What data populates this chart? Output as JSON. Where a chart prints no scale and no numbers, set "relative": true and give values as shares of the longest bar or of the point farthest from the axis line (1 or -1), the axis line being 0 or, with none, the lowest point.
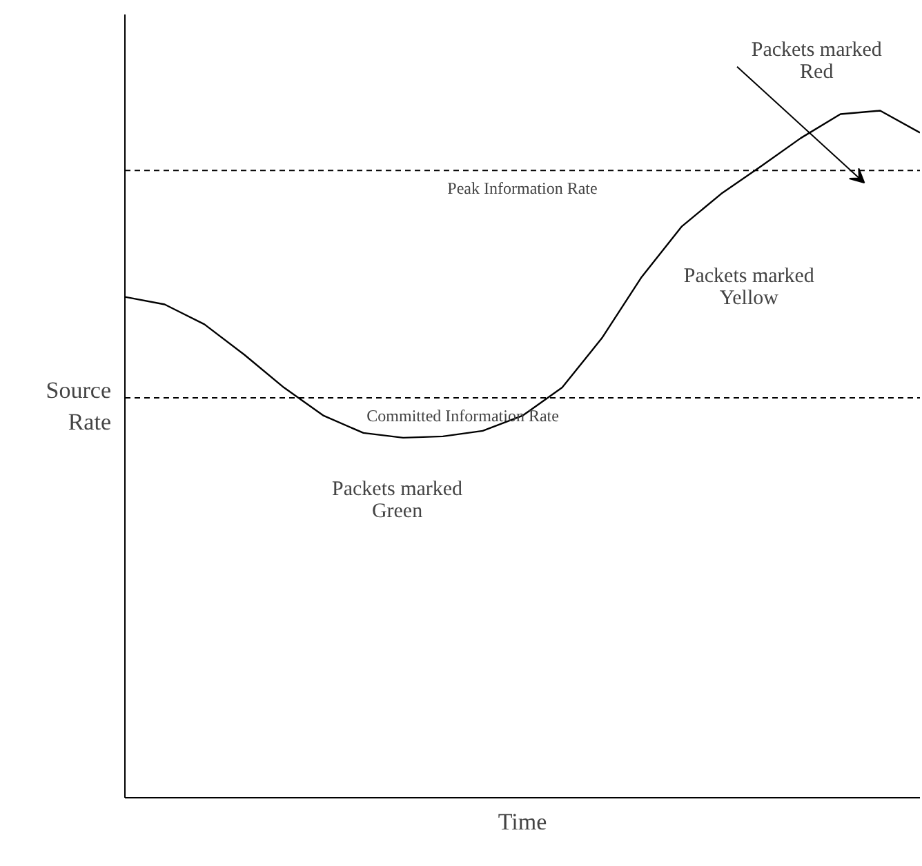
{
  "chart_data": {
    "type": "line",
    "relative": true,
    "xlabel": "Time",
    "ylabel": "Source\nRate",
    "categories": [
      null,
      null,
      null,
      null,
      null,
      null,
      null,
      null,
      null,
      null,
      null,
      null,
      null,
      null,
      null,
      null,
      null,
      null,
      null,
      null,
      null
    ],
    "series": [
      {
        "color": "#000000",
        "values": [
          0.729,
          0.718,
          0.689,
          0.645,
          0.597,
          0.556,
          0.531,
          0.524,
          0.526,
          0.534,
          0.556,
          0.597,
          0.669,
          0.758,
          0.831,
          0.879,
          0.919,
          0.96,
          0.995,
          1.0,
          0.968
        ]
      }
    ],
    "ref_lines": [
      {
        "axis": "y",
        "value": 0.913,
        "label": "Peak Information Rate",
        "line_style": "dashed"
      },
      {
        "axis": "y",
        "value": 0.582,
        "label": "Committed Information Rate",
        "line_style": "dashed"
      }
    ],
    "annotations": [
      "Packets marked\nRed",
      "Packets marked\nYellow",
      "Packets marked\nGreen"
    ],
    "grid": false,
    "marker": "none",
    "line_style": "solid",
    "tick_labels": false
  }
}
